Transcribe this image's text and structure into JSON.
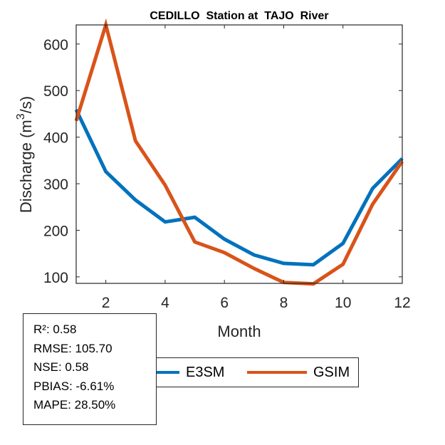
{
  "chart_data": {
    "type": "line",
    "title": "CEDILLO  Station at  TAJO  River",
    "xlabel": "Month",
    "ylabel": "Discharge (m³/s)",
    "ylabel_parts": {
      "main": "Discharge (m",
      "sup": "3",
      "tail": "/s)"
    },
    "xlim": [
      1,
      12
    ],
    "ylim": [
      86,
      641
    ],
    "xticks": [
      2,
      4,
      6,
      8,
      10,
      12
    ],
    "xtick_labels": [
      "2",
      "4",
      "6",
      "8",
      "10",
      "12"
    ],
    "yticks": [
      100,
      200,
      300,
      400,
      500,
      600
    ],
    "ytick_labels": [
      "100",
      "200",
      "300",
      "400",
      "500",
      "600"
    ],
    "grid": false,
    "x": [
      1,
      2,
      3,
      4,
      5,
      6,
      7,
      8,
      9,
      10,
      11,
      12
    ],
    "series": [
      {
        "name": "E3SM",
        "color": "#0072BD",
        "values": [
          459,
          326,
          265,
          218,
          228,
          181,
          147,
          129,
          126,
          172,
          290,
          354
        ]
      },
      {
        "name": "GSIM",
        "color": "#D95319",
        "values": [
          435,
          641,
          392,
          297,
          175,
          152,
          118,
          88,
          85,
          127,
          256,
          348
        ]
      }
    ],
    "legend": {
      "placement": "bottom-center",
      "orientation": "horizontal",
      "entries": [
        "E3SM",
        "GSIM"
      ]
    }
  },
  "stats": {
    "lines": [
      "R²: 0.58",
      "RMSE: 105.70",
      "NSE: 0.58",
      "PBIAS: -6.61%",
      "MAPE: 28.50%"
    ],
    "r2": "0.58",
    "rmse": "105.70",
    "nse": "0.58",
    "pbias": "-6.61%",
    "mape": "28.50%"
  }
}
